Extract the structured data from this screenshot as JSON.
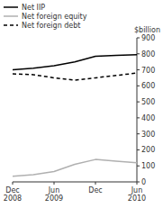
{
  "chart_data": {
    "type": "line",
    "y_label": "$billion",
    "categories": [
      "Dec 2008",
      null,
      "Jun 2009",
      null,
      "Dec",
      null,
      "Jun 2010"
    ],
    "series": [
      {
        "name": "Net IIP",
        "color": "#000000",
        "line_style": "solid",
        "values": [
          700,
          710,
          725,
          750,
          785,
          790,
          795
        ]
      },
      {
        "name": "Net foreign equity",
        "color": "#b0b0b0",
        "line_style": "solid",
        "values": [
          35,
          45,
          65,
          110,
          140,
          130,
          120
        ]
      },
      {
        "name": "Net foreign debt",
        "color": "#000000",
        "line_style": "dashed",
        "values": [
          675,
          670,
          650,
          635,
          650,
          665,
          680
        ]
      }
    ],
    "ylim": [
      0,
      900
    ],
    "yticks": [
      0,
      100,
      200,
      300,
      400,
      500,
      600,
      700,
      800,
      900
    ],
    "grid": false,
    "legend": "upper left"
  }
}
